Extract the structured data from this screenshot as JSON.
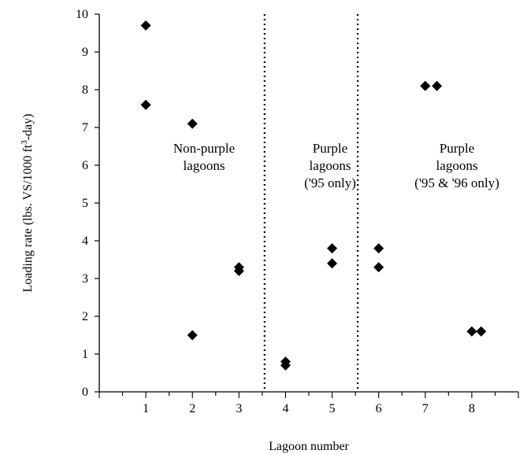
{
  "chart_data": {
    "type": "scatter",
    "xlabel": "Lagoon number",
    "ylabel": "Loading rate (lbs. VS/1000 ft",
    "ylabel_sup": "3",
    "ylabel_tail": "-day)",
    "xlim": [
      0,
      9
    ],
    "ylim": [
      0,
      10
    ],
    "x_ticks": [
      1,
      2,
      3,
      4,
      5,
      6,
      7,
      8
    ],
    "y_ticks": [
      0,
      1,
      2,
      3,
      4,
      5,
      6,
      7,
      8,
      9,
      10
    ],
    "grid": false,
    "marker": "diamond",
    "marker_color": "#000000",
    "points": [
      {
        "x": 1,
        "y": 9.7
      },
      {
        "x": 1,
        "y": 7.6
      },
      {
        "x": 2,
        "y": 7.1
      },
      {
        "x": 2,
        "y": 1.5
      },
      {
        "x": 3,
        "y": 3.3
      },
      {
        "x": 3,
        "y": 3.2
      },
      {
        "x": 4,
        "y": 0.8
      },
      {
        "x": 4,
        "y": 0.7
      },
      {
        "x": 5,
        "y": 3.8
      },
      {
        "x": 5,
        "y": 3.4
      },
      {
        "x": 6,
        "y": 3.8
      },
      {
        "x": 6,
        "y": 3.3
      },
      {
        "x": 7,
        "y": 8.1
      },
      {
        "x": 7.25,
        "y": 8.1
      },
      {
        "x": 8,
        "y": 1.6
      },
      {
        "x": 8.2,
        "y": 1.6
      }
    ],
    "dividers": [
      3.55,
      5.55
    ],
    "annotations": [
      {
        "lines": [
          "Non-purple",
          "lagoons"
        ]
      },
      {
        "lines": [
          "Purple",
          "lagoons",
          "('95 only)"
        ]
      },
      {
        "lines": [
          "Purple",
          "lagoons",
          "('95 & '96 only)"
        ]
      }
    ]
  }
}
